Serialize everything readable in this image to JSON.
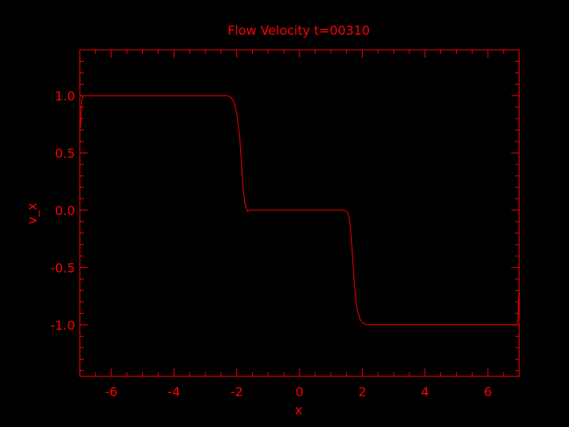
{
  "chart_data": {
    "type": "line",
    "title": "Flow Velocity t=00310",
    "xlabel": "x",
    "ylabel": "v_x",
    "xlim": [
      -7,
      7
    ],
    "ylim": [
      -1.45,
      1.4
    ],
    "x_ticks": [
      -6,
      -4,
      -2,
      0,
      2,
      4,
      6
    ],
    "x_tick_labels": [
      "-6",
      "-4",
      "-2",
      "0",
      "2",
      "4",
      "6"
    ],
    "y_ticks": [
      1.0,
      0.5,
      0.0,
      -0.5,
      -1.0
    ],
    "y_tick_labels": [
      "1.0",
      "0.5",
      "0.0",
      "-0.5",
      "-1.0"
    ],
    "grid": false,
    "legend": "none",
    "colors": {
      "background": "#000000",
      "foreground": "#ff0000"
    },
    "series": [
      {
        "x": [
          -6.98,
          -6.94,
          -6.9,
          -6.8,
          -6.5,
          -6.0,
          -5.0,
          -4.0,
          -3.0,
          -2.5,
          -2.3,
          -2.2,
          -2.1,
          -2.0,
          -1.9,
          -1.85,
          -1.8,
          -1.75,
          -1.7,
          -1.65,
          -1.6,
          -1.55,
          -1.5,
          -1.3,
          -1.0,
          0.0,
          1.0,
          1.4,
          1.5,
          1.55,
          1.6,
          1.65,
          1.7,
          1.75,
          1.8,
          1.85,
          1.9,
          1.95,
          2.0,
          2.1,
          2.2,
          2.3,
          2.5,
          3.0,
          4.0,
          5.0,
          6.0,
          6.85,
          6.9,
          6.94,
          6.97,
          6.99
        ],
        "y": [
          0.72,
          0.95,
          1.0,
          1.0,
          1.0,
          1.0,
          1.0,
          1.0,
          1.0,
          1.0,
          1.0,
          0.99,
          0.95,
          0.85,
          0.62,
          0.42,
          0.2,
          0.08,
          0.02,
          -0.01,
          0.0,
          0.0,
          0.0,
          0.0,
          0.0,
          0.0,
          0.0,
          0.0,
          -0.01,
          -0.03,
          -0.1,
          -0.25,
          -0.45,
          -0.65,
          -0.8,
          -0.88,
          -0.93,
          -0.96,
          -0.98,
          -0.995,
          -1.0,
          -1.0,
          -1.0,
          -1.0,
          -1.0,
          -1.0,
          -1.0,
          -1.0,
          -1.0,
          -0.98,
          -0.88,
          -0.72
        ]
      }
    ]
  }
}
